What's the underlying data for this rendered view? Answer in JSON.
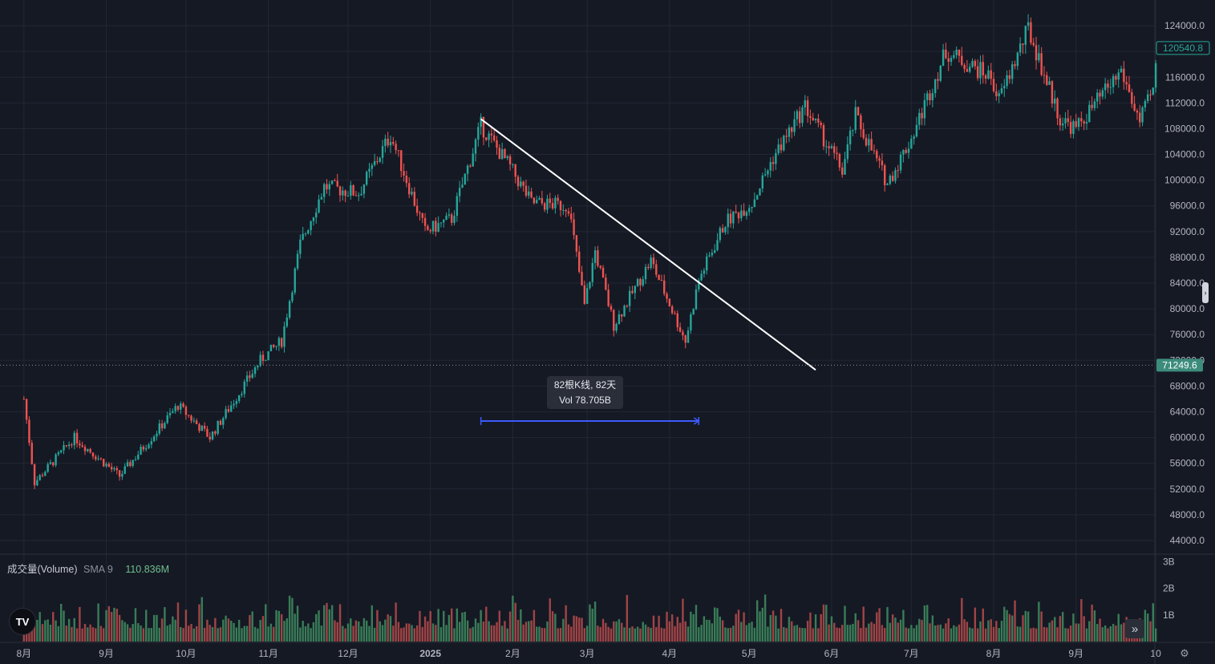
{
  "chart_data": {
    "type": "candlestick",
    "price_axis": {
      "ticks": [
        "124000.0",
        "120000.0",
        "116000.0",
        "112000.0",
        "108000.0",
        "104000.0",
        "100000.0",
        "96000.0",
        "92000.0",
        "88000.0",
        "84000.0",
        "80000.0",
        "76000.0",
        "72000.0",
        "68000.0",
        "64000.0",
        "60000.0",
        "56000.0",
        "52000.0",
        "48000.0",
        "44000.0"
      ],
      "range": [
        42000,
        128000
      ]
    },
    "time_axis": {
      "ticks": [
        "8月",
        "9月",
        "10月",
        "11月",
        "12月",
        "2025",
        "2月",
        "3月",
        "4月",
        "5月",
        "6月",
        "7月",
        "8月",
        "9月",
        "10"
      ]
    },
    "series_anchors": [
      [
        "2024-08-01",
        66000
      ],
      [
        "2024-08-05",
        53000
      ],
      [
        "2024-08-20",
        60000
      ],
      [
        "2024-09-06",
        54000
      ],
      [
        "2024-09-28",
        65000
      ],
      [
        "2024-10-10",
        60000
      ],
      [
        "2024-10-29",
        72000
      ],
      [
        "2024-11-06",
        75000
      ],
      [
        "2024-11-13",
        90000
      ],
      [
        "2024-11-22",
        99000
      ],
      [
        "2024-12-05",
        98000
      ],
      [
        "2024-12-17",
        107000
      ],
      [
        "2024-12-30",
        92000
      ],
      [
        "2025-01-09",
        94000
      ],
      [
        "2025-01-20",
        108500
      ],
      [
        "2025-01-31",
        102000
      ],
      [
        "2025-02-08",
        96500
      ],
      [
        "2025-02-22",
        96000
      ],
      [
        "2025-02-28",
        80500
      ],
      [
        "2025-03-04",
        89000
      ],
      [
        "2025-03-11",
        77500
      ],
      [
        "2025-03-25",
        87500
      ],
      [
        "2025-04-07",
        75000
      ],
      [
        "2025-04-12",
        84500
      ],
      [
        "2025-04-22",
        93500
      ],
      [
        "2025-05-02",
        96500
      ],
      [
        "2025-05-10",
        103500
      ],
      [
        "2025-05-22",
        111500
      ],
      [
        "2025-06-05",
        101500
      ],
      [
        "2025-06-10",
        110000
      ],
      [
        "2025-06-22",
        99500
      ],
      [
        "2025-07-01",
        106500
      ],
      [
        "2025-07-14",
        120000
      ],
      [
        "2025-07-31",
        116000
      ],
      [
        "2025-08-03",
        112500
      ],
      [
        "2025-08-14",
        123500
      ],
      [
        "2025-08-26",
        109500
      ],
      [
        "2025-09-01",
        108000
      ],
      [
        "2025-09-18",
        117000
      ],
      [
        "2025-09-25",
        109000
      ],
      [
        "2025-09-30",
        114000
      ],
      [
        "2025-10-02",
        120540.8
      ]
    ],
    "last_price": "120540.8",
    "crosshair_price": "71249.6",
    "trendline": {
      "start": [
        "2025-01-20",
        109500
      ],
      "end": [
        "2025-05-26",
        70500
      ],
      "color": "#ffffff"
    },
    "date_range_measure": {
      "start": "2025-01-20",
      "end": "2025-04-12",
      "label_line1": "82根K线, 82天",
      "label_line2": "Vol 78.705B",
      "color": "#3d5afe"
    },
    "volume_axis": {
      "ticks": [
        "3B",
        "2B",
        "1B"
      ]
    },
    "volume_legend": {
      "name": "成交量(Volume)",
      "sma": "SMA 9",
      "value": "110.836M"
    },
    "colors": {
      "up": "#26a69a",
      "down": "#ef5350",
      "up_volume": "#3f8f62",
      "down_volume": "#b84c4c",
      "background": "#151924",
      "grid": "#232734",
      "last_price_label": "#26a69a",
      "crosshair_label": "#3c8c7c"
    }
  },
  "icons": {
    "logo": "tradingview-logo-icon",
    "goto": "go-to-realtime-icon",
    "settings": "settings-icon",
    "handle": "scale-handle-icon"
  },
  "ui": {
    "logo_text": "TV",
    "goto_glyph": "»",
    "settings_glyph": "⚙",
    "handle_glyph": "›"
  }
}
